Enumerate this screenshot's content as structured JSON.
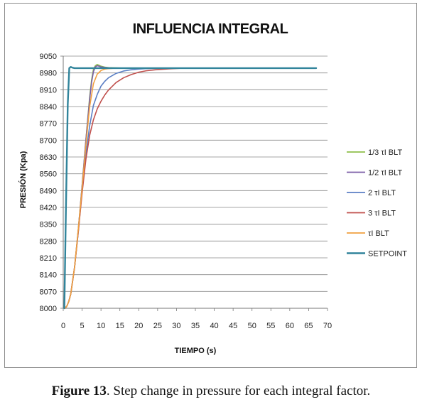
{
  "chart_data": {
    "type": "line",
    "title": "INFLUENCIA INTEGRAL",
    "xlabel": "TIEMPO (s)",
    "ylabel": "PRESIÓN (Kpa)",
    "xlim": [
      0,
      70
    ],
    "ylim": [
      8000,
      9050
    ],
    "xticks": [
      "0",
      "5",
      "10",
      "15",
      "20",
      "25",
      "30",
      "35",
      "40",
      "45",
      "50",
      "55",
      "60",
      "65",
      "70"
    ],
    "yticks": [
      "8000",
      "8070",
      "8140",
      "8210",
      "8280",
      "8350",
      "8420",
      "8490",
      "8560",
      "8630",
      "8700",
      "8770",
      "8840",
      "8910",
      "8980",
      "9050"
    ],
    "grid": "horizontal",
    "legend_position": "right",
    "series": [
      {
        "name": "1/3 τI  BLT",
        "color": "#8fbf4c",
        "x": [
          0.5,
          1,
          1.5,
          2,
          3,
          4,
          5,
          6,
          7,
          7.5,
          8,
          8.5,
          9,
          9.5,
          10,
          11,
          12,
          14,
          16,
          20,
          30,
          67
        ],
        "y": [
          8000,
          8010,
          8030,
          8060,
          8170,
          8330,
          8510,
          8700,
          8880,
          8950,
          8995,
          9010,
          9015,
          9012,
          9008,
          9004,
          9002,
          9001,
          9000,
          9000,
          9000,
          9000
        ]
      },
      {
        "name": "1/2 τI  BLT",
        "color": "#7b5ea7",
        "x": [
          0.5,
          1,
          1.5,
          2,
          3,
          4,
          5,
          6,
          7,
          7.5,
          8,
          8.5,
          9,
          9.5,
          10,
          11,
          12,
          14,
          16,
          20,
          30,
          67
        ],
        "y": [
          8000,
          8010,
          8030,
          8060,
          8170,
          8330,
          8510,
          8700,
          8870,
          8940,
          8985,
          9005,
          9010,
          9008,
          9005,
          9003,
          9001,
          9000,
          9000,
          9000,
          9000,
          9000
        ]
      },
      {
        "name": "2 τI  BLT",
        "color": "#5b7fc4",
        "x": [
          0.5,
          1,
          1.5,
          2,
          3,
          4,
          5,
          6,
          7,
          8,
          9,
          10,
          11,
          12,
          14,
          16,
          18,
          20,
          22,
          25,
          30,
          35,
          67
        ],
        "y": [
          8000,
          8010,
          8030,
          8060,
          8170,
          8320,
          8490,
          8640,
          8760,
          8845,
          8890,
          8925,
          8945,
          8960,
          8978,
          8988,
          8993,
          8996,
          8998,
          8999,
          9000,
          9000,
          9000
        ]
      },
      {
        "name": "3 τI  BLT",
        "color": "#c0504d",
        "x": [
          0.5,
          1,
          1.5,
          2,
          3,
          4,
          5,
          6,
          7,
          8,
          9,
          10,
          11,
          12,
          14,
          16,
          18,
          20,
          22,
          25,
          28,
          31,
          34,
          67
        ],
        "y": [
          8000,
          8010,
          8030,
          8060,
          8170,
          8320,
          8480,
          8620,
          8720,
          8785,
          8830,
          8862,
          8888,
          8909,
          8940,
          8960,
          8973,
          8983,
          8989,
          8994,
          8997,
          8999,
          9000,
          9000
        ]
      },
      {
        "name": "τI  BLT",
        "color": "#f0a040",
        "x": [
          0.5,
          1,
          1.5,
          2,
          3,
          4,
          5,
          6,
          7,
          8,
          9,
          10,
          11,
          12,
          14,
          16,
          20,
          30,
          67
        ],
        "y": [
          8000,
          8010,
          8030,
          8060,
          8170,
          8330,
          8500,
          8680,
          8840,
          8935,
          8975,
          8990,
          8996,
          8998,
          9000,
          9000,
          9000,
          9000,
          9000
        ]
      },
      {
        "name": "SETPOINT",
        "color": "#31849b",
        "x": [
          0.3,
          0.7,
          1.2,
          1.6,
          2,
          2.4,
          3,
          67
        ],
        "y": [
          8000,
          8400,
          8850,
          9000,
          9005,
          9002,
          9000,
          9000
        ]
      }
    ]
  },
  "caption": {
    "label": "Figure 13",
    "text": ". Step change in pressure for each integral factor."
  }
}
